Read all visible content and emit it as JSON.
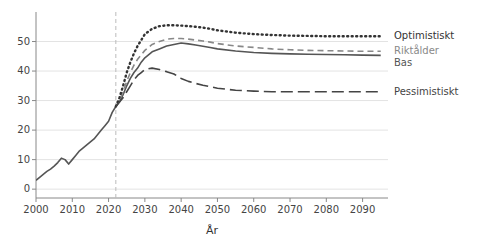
{
  "chart_data": {
    "type": "line",
    "xlabel": "År",
    "xlim": [
      2000,
      2097
    ],
    "ylim": [
      -3,
      60
    ],
    "xticks": [
      2000,
      2010,
      2020,
      2030,
      2040,
      2050,
      2060,
      2070,
      2080,
      2090
    ],
    "yticks": [
      0,
      10,
      20,
      30,
      40,
      50
    ],
    "grid": true,
    "vline_x": 2022,
    "series": [
      {
        "name": "Bas",
        "color": "#555555",
        "line_style": "solid",
        "x": [
          2000,
          2001,
          2002,
          2003,
          2004,
          2005,
          2006,
          2007,
          2008,
          2009,
          2010,
          2011,
          2012,
          2013,
          2014,
          2015,
          2016,
          2017,
          2018,
          2019,
          2020,
          2021,
          2022,
          2023,
          2024,
          2025,
          2026,
          2027,
          2028,
          2029,
          2030,
          2032,
          2034,
          2036,
          2038,
          2040,
          2042,
          2044,
          2046,
          2048,
          2050,
          2055,
          2060,
          2065,
          2070,
          2075,
          2080,
          2085,
          2090,
          2095
        ],
        "values": [
          3.0,
          4.0,
          5.0,
          6.0,
          6.8,
          7.8,
          9.0,
          10.5,
          10.0,
          8.5,
          10.0,
          11.5,
          13.0,
          14.0,
          15.0,
          16.0,
          17.0,
          18.5,
          20.0,
          21.5,
          23.0,
          26.0,
          28.0,
          29.5,
          32.0,
          35.0,
          37.5,
          39.5,
          41.0,
          43.0,
          44.5,
          46.5,
          47.5,
          48.5,
          49.0,
          49.5,
          49.2,
          48.8,
          48.4,
          48.0,
          47.5,
          46.8,
          46.3,
          46.0,
          45.8,
          45.7,
          45.6,
          45.5,
          45.4,
          45.3
        ]
      },
      {
        "name": "Riktålder",
        "color": "#888888",
        "line_style": "dashed",
        "x": [
          2022,
          2023,
          2024,
          2025,
          2026,
          2027,
          2028,
          2029,
          2030,
          2032,
          2034,
          2036,
          2038,
          2040,
          2042,
          2044,
          2046,
          2048,
          2050,
          2055,
          2060,
          2065,
          2070,
          2075,
          2080,
          2085,
          2090,
          2095
        ],
        "values": [
          28.0,
          30.0,
          33.0,
          36.5,
          39.5,
          42.0,
          44.0,
          45.5,
          47.0,
          49.0,
          50.0,
          50.8,
          51.0,
          51.0,
          50.8,
          50.5,
          50.2,
          49.8,
          49.3,
          48.5,
          48.0,
          47.5,
          47.2,
          47.0,
          46.9,
          46.8,
          46.7,
          46.7
        ]
      },
      {
        "name": "Optimistiskt",
        "color": "#333333",
        "line_style": "dotted",
        "x": [
          2022,
          2023,
          2024,
          2025,
          2026,
          2027,
          2028,
          2029,
          2030,
          2032,
          2034,
          2036,
          2038,
          2040,
          2042,
          2044,
          2046,
          2048,
          2050,
          2055,
          2060,
          2065,
          2070,
          2075,
          2080,
          2085,
          2090,
          2095
        ],
        "values": [
          28.0,
          31.0,
          35.0,
          39.5,
          43.0,
          46.0,
          48.5,
          50.5,
          52.5,
          54.3,
          55.2,
          55.5,
          55.5,
          55.4,
          55.2,
          55.0,
          54.7,
          54.3,
          53.8,
          53.0,
          52.5,
          52.2,
          52.0,
          51.9,
          51.8,
          51.8,
          51.8,
          51.8
        ]
      },
      {
        "name": "Pessimistiskt",
        "color": "#444444",
        "line_style": "long-dashed",
        "x": [
          2022,
          2023,
          2024,
          2025,
          2026,
          2027,
          2028,
          2029,
          2030,
          2032,
          2034,
          2036,
          2038,
          2040,
          2042,
          2044,
          2046,
          2048,
          2050,
          2055,
          2060,
          2065,
          2070,
          2075,
          2080,
          2085,
          2090,
          2095
        ],
        "values": [
          28.0,
          29.5,
          31.0,
          33.0,
          35.0,
          37.0,
          38.5,
          39.5,
          40.5,
          41.0,
          40.5,
          39.8,
          39.0,
          37.5,
          36.5,
          35.8,
          35.2,
          34.7,
          34.2,
          33.5,
          33.2,
          33.0,
          33.0,
          33.0,
          33.0,
          33.0,
          33.0,
          33.0
        ]
      }
    ]
  }
}
